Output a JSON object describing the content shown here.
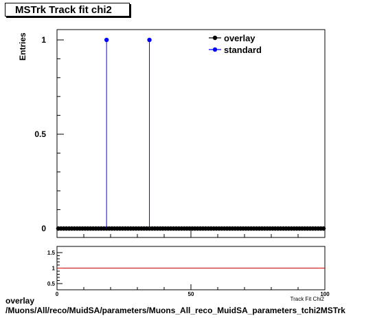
{
  "chart_data": [
    {
      "type": "scatter",
      "title": "MSTrk Track fit chi2",
      "xlabel": "Track Fit Chi2",
      "ylabel": "Entries",
      "xlim": [
        0,
        100
      ],
      "ylim": [
        0,
        1.05
      ],
      "yticks": [
        0,
        0.5,
        1
      ],
      "ytick_labels": [
        "0",
        "0.5",
        "1"
      ],
      "series": [
        {
          "name": "overlay",
          "color": "#000000",
          "x": [
            0.5,
            1.5,
            2.5,
            3.5,
            4.5,
            5.5,
            6.5,
            7.5,
            8.5,
            9.5,
            10.5,
            11.5,
            12.5,
            13.5,
            14.5,
            15.5,
            16.5,
            17.5,
            18.5,
            19.5,
            20.5,
            21.5,
            22.5,
            23.5,
            24.5,
            25.5,
            26.5,
            27.5,
            28.5,
            29.5,
            30.5,
            31.5,
            32.5,
            33.5,
            34.5,
            35.5,
            36.5,
            37.5,
            38.5,
            39.5,
            40.5,
            41.5,
            42.5,
            43.5,
            44.5,
            45.5,
            46.5,
            47.5,
            48.5,
            49.5,
            50.5,
            51.5,
            52.5,
            53.5,
            54.5,
            55.5,
            56.5,
            57.5,
            58.5,
            59.5,
            60.5,
            61.5,
            62.5,
            63.5,
            64.5,
            65.5,
            66.5,
            67.5,
            68.5,
            69.5,
            70.5,
            71.5,
            72.5,
            73.5,
            74.5,
            75.5,
            76.5,
            77.5,
            78.5,
            79.5,
            80.5,
            81.5,
            82.5,
            83.5,
            84.5,
            85.5,
            86.5,
            87.5,
            88.5,
            89.5,
            90.5,
            91.5,
            92.5,
            93.5,
            94.5,
            95.5,
            96.5,
            97.5,
            98.5,
            99.5
          ],
          "y": [
            0,
            0,
            0,
            0,
            0,
            0,
            0,
            0,
            0,
            0,
            0,
            0,
            0,
            0,
            0,
            0,
            0,
            0,
            0,
            0,
            0,
            0,
            0,
            0,
            0,
            0,
            0,
            0,
            0,
            0,
            0,
            0,
            0,
            0,
            0,
            0,
            0,
            0,
            0,
            0,
            0,
            0,
            0,
            0,
            0,
            0,
            0,
            0,
            0,
            0,
            0,
            0,
            0,
            0,
            0,
            0,
            0,
            0,
            0,
            0,
            0,
            0,
            0,
            0,
            0,
            0,
            0,
            0,
            0,
            0,
            0,
            0,
            0,
            0,
            0,
            0,
            0,
            0,
            0,
            0,
            0,
            0,
            0,
            0,
            0,
            0,
            0,
            0,
            0,
            0,
            0,
            0,
            0,
            0,
            0,
            0,
            0,
            0,
            0,
            0
          ]
        },
        {
          "name": "standard",
          "color": "#0000ff",
          "x": [
            18.5,
            34.5
          ],
          "y": [
            1,
            1
          ]
        }
      ],
      "legend": "top-right",
      "grid": false
    },
    {
      "type": "line",
      "xlim": [
        0,
        100
      ],
      "ylim": [
        0.3,
        1.7
      ],
      "xticks": [
        0,
        50,
        100
      ],
      "xtick_labels": [
        "0",
        "50",
        "100"
      ],
      "yticks": [
        0.5,
        1,
        1.5
      ],
      "ytick_labels": [
        "0.5",
        "1",
        "1.5"
      ],
      "reference_line": {
        "y": 1,
        "color": "#cc0000"
      }
    }
  ],
  "caption": {
    "line1": "overlay",
    "line2": "/Muons/All/reco/MuidSA/parameters/Muons_All_reco_MuidSA_parameters_tchi2MSTrk"
  }
}
